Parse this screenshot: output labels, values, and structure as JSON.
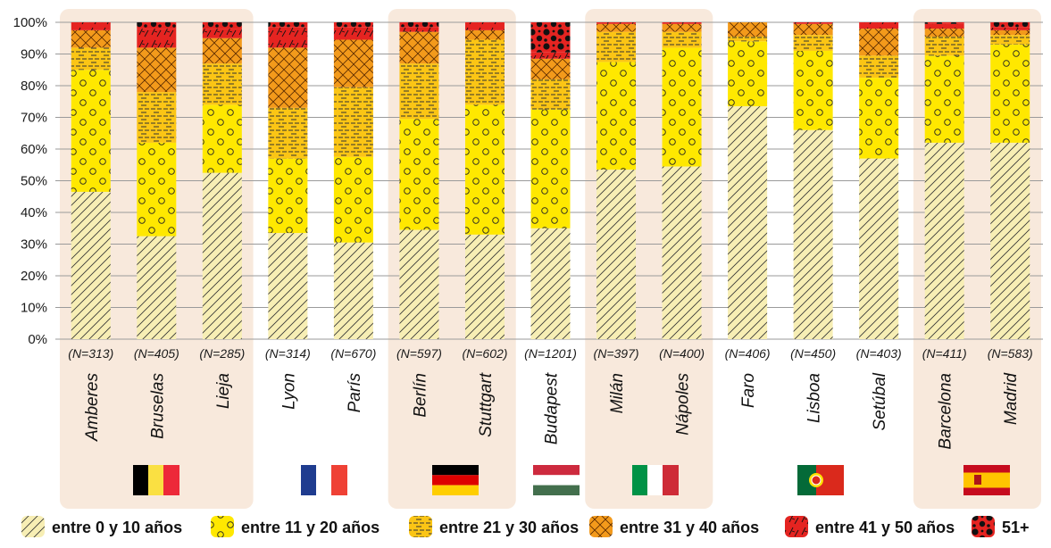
{
  "chart_data": {
    "type": "bar",
    "stacked": true,
    "percent": true,
    "ylim": [
      0,
      100
    ],
    "yticks": [
      "0%",
      "10%",
      "20%",
      "30%",
      "40%",
      "50%",
      "60%",
      "70%",
      "80%",
      "90%",
      "100%"
    ],
    "grid": true,
    "categories": [
      "Amberes",
      "Bruselas",
      "Lieja",
      "Lyon",
      "París",
      "Berlín",
      "Stuttgart",
      "Budapest",
      "Milán",
      "Nápoles",
      "Faro",
      "Lisboa",
      "Setúbal",
      "Barcelona",
      "Madrid"
    ],
    "n_labels": [
      "(N=313)",
      "(N=405)",
      "(N=285)",
      "(N=314)",
      "(N=670)",
      "(N=597)",
      "(N=602)",
      "(N=1201)",
      "(N=397)",
      "(N=400)",
      "(N=406)",
      "(N=450)",
      "(N=403)",
      "(N=411)",
      "(N=583)"
    ],
    "series": [
      {
        "name": "entre 0 y 10 años",
        "color": "#f7eeb4",
        "pattern": "hatch",
        "values": [
          46.5,
          32.5,
          52.5,
          33.5,
          30.5,
          34.5,
          33,
          35,
          53.5,
          54.5,
          73.5,
          66,
          57,
          62,
          62
        ]
      },
      {
        "name": "entre 11 y 20 años",
        "color": "#ffe800",
        "pattern": "circles",
        "values": [
          38.5,
          29.5,
          21.5,
          23.5,
          27,
          35,
          41,
          37.5,
          34,
          37.5,
          20.5,
          25,
          25.5,
          27.5,
          31
        ]
      },
      {
        "name": "entre 21 y 30 años",
        "color": "#fbc515",
        "pattern": "dashes",
        "values": [
          7,
          16,
          13,
          16,
          22,
          17.5,
          20.5,
          9.5,
          9.5,
          5,
          1.5,
          5,
          7,
          6,
          3
        ]
      },
      {
        "name": "entre 31 y 40 años",
        "color": "#f39a1b",
        "pattern": "crosshatch",
        "values": [
          5.5,
          14,
          8,
          19,
          15,
          10,
          3,
          6.5,
          2.5,
          2.5,
          4.5,
          3.5,
          8.5,
          2.5,
          1.5
        ]
      },
      {
        "name": "entre 41 y 50 años",
        "color": "#e52421",
        "pattern": "slashes",
        "values": [
          2.5,
          6,
          3,
          6.5,
          4,
          1.5,
          2.5,
          2,
          0.5,
          0.5,
          0,
          0.5,
          2,
          1.5,
          1
        ]
      },
      {
        "name": "51+",
        "color": "#1a1a1a",
        "pattern": "blobs",
        "values": [
          0,
          2,
          2,
          1.5,
          1.5,
          1.5,
          0,
          9.5,
          0,
          0,
          0,
          0,
          0,
          0.5,
          1.5
        ]
      }
    ],
    "country_groups": [
      {
        "country": "Bélgica",
        "members": [
          0,
          1,
          2
        ],
        "shaded": true,
        "flag": "belgium-flag"
      },
      {
        "country": "Francia",
        "members": [
          3,
          4
        ],
        "shaded": false,
        "flag": "france-flag"
      },
      {
        "country": "Alemania",
        "members": [
          5,
          6
        ],
        "shaded": true,
        "flag": "germany-flag"
      },
      {
        "country": "Hungría",
        "members": [
          7
        ],
        "shaded": false,
        "flag": "hungary-flag"
      },
      {
        "country": "Italia",
        "members": [
          8,
          9
        ],
        "shaded": true,
        "flag": "italy-flag"
      },
      {
        "country": "Portugal",
        "members": [
          10,
          11,
          12
        ],
        "shaded": false,
        "flag": "portugal-flag"
      },
      {
        "country": "España",
        "members": [
          13,
          14
        ],
        "shaded": true,
        "flag": "spain-flag"
      }
    ],
    "legend_position": "bottom"
  },
  "colors": {
    "group_shade": "#f8e9dc",
    "grid": "#9a9a9a"
  }
}
